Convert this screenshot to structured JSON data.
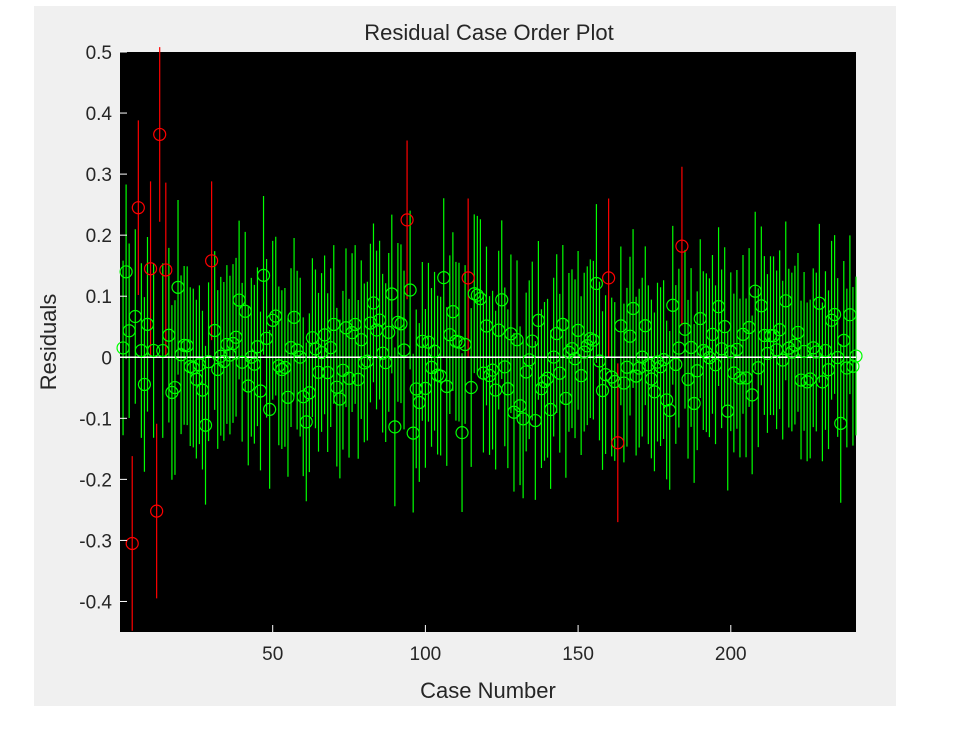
{
  "chart_data": {
    "type": "scatter",
    "title": "Residual Case Order Plot",
    "xlabel": "Case Number",
    "ylabel": "Residuals",
    "xlim": [
      0,
      241
    ],
    "ylim": [
      -0.45,
      0.5
    ],
    "xticks": [
      50,
      100,
      150,
      200
    ],
    "yticks": [
      0.5,
      0.4,
      0.3,
      0.2,
      0.1,
      0,
      -0.1,
      -0.2,
      -0.3,
      -0.4
    ],
    "grid": false,
    "legend": "none",
    "plot_background": "#000000",
    "zero_line_color": "#ffffff",
    "normal_color": "#00ff00",
    "outlier_color": "#ff0000",
    "n_cases": 241,
    "ci_half_width": 0.13,
    "outliers": [
      {
        "x": 4,
        "y": -0.305
      },
      {
        "x": 6,
        "y": 0.245
      },
      {
        "x": 10,
        "y": 0.145
      },
      {
        "x": 12,
        "y": -0.252
      },
      {
        "x": 13,
        "y": 0.365
      },
      {
        "x": 15,
        "y": 0.143
      },
      {
        "x": 30,
        "y": 0.158
      },
      {
        "x": 94,
        "y": 0.225
      },
      {
        "x": 114,
        "y": 0.13
      },
      {
        "x": 160,
        "y": 0.13
      },
      {
        "x": 163,
        "y": -0.14
      },
      {
        "x": 184,
        "y": 0.182
      }
    ]
  }
}
